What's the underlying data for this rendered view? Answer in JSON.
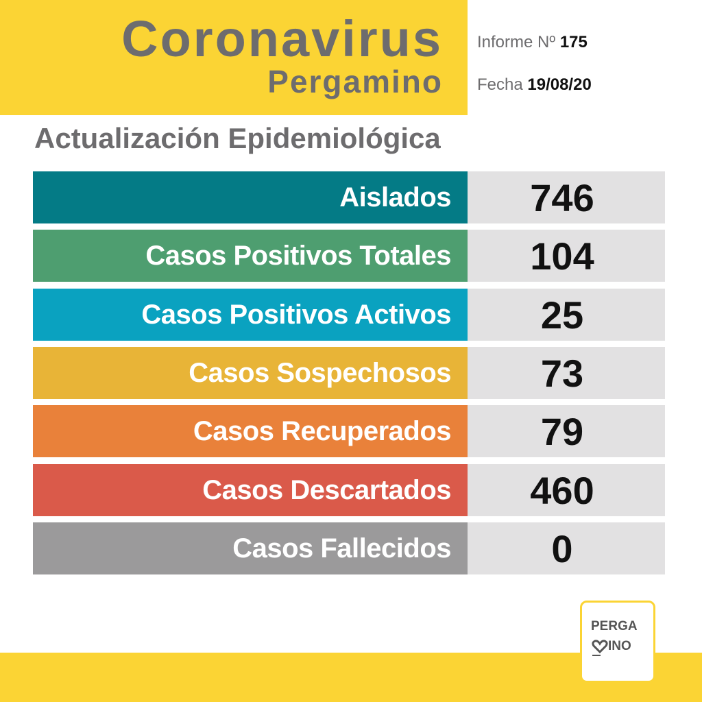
{
  "header": {
    "title": "Coronavirus",
    "subtitle": "Pergamino",
    "report_label": "Informe Nº",
    "report_number": "175",
    "date_label": "Fecha",
    "date": "19/08/20"
  },
  "section_title": "Actualización Epidemiológica",
  "rows": [
    {
      "label": "Aislados",
      "value": 746
    },
    {
      "label": "Casos Positivos Totales",
      "value": 104
    },
    {
      "label": "Casos Positivos Activos",
      "value": 25
    },
    {
      "label": "Casos Sospechosos",
      "value": 73
    },
    {
      "label": "Casos Recuperados",
      "value": 79
    },
    {
      "label": "Casos Descartados",
      "value": 460
    },
    {
      "label": "Casos Fallecidos",
      "value": 0
    }
  ],
  "logo": {
    "line1": "PERGA",
    "line2": "INO"
  }
}
